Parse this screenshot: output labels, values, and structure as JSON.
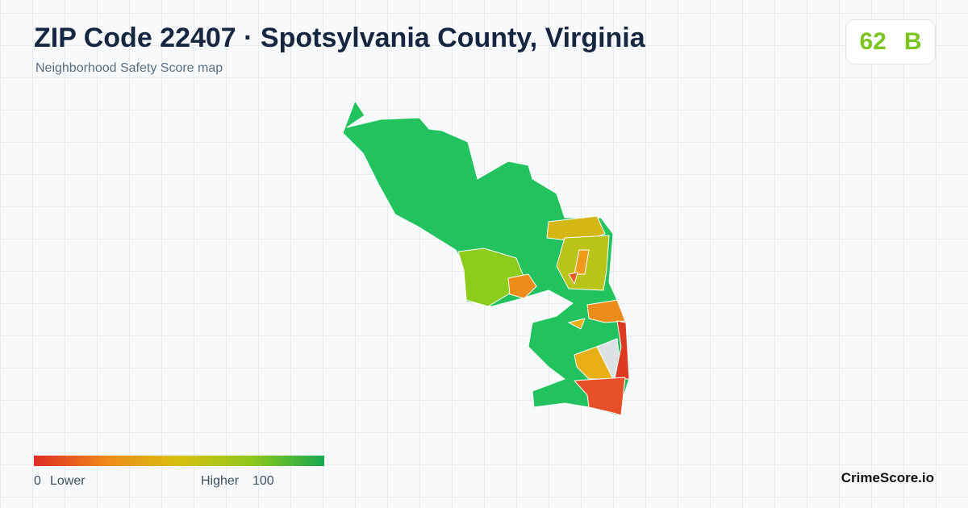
{
  "header": {
    "title": "ZIP Code 22407 · Spotsylvania County, Virginia",
    "subtitle": "Neighborhood Safety Score map"
  },
  "score": {
    "value": 62,
    "grade": "B"
  },
  "legend": {
    "min": 0,
    "min_label": "Lower",
    "max_label": "Higher",
    "max": 100
  },
  "brand": "CrimeScore.io"
}
